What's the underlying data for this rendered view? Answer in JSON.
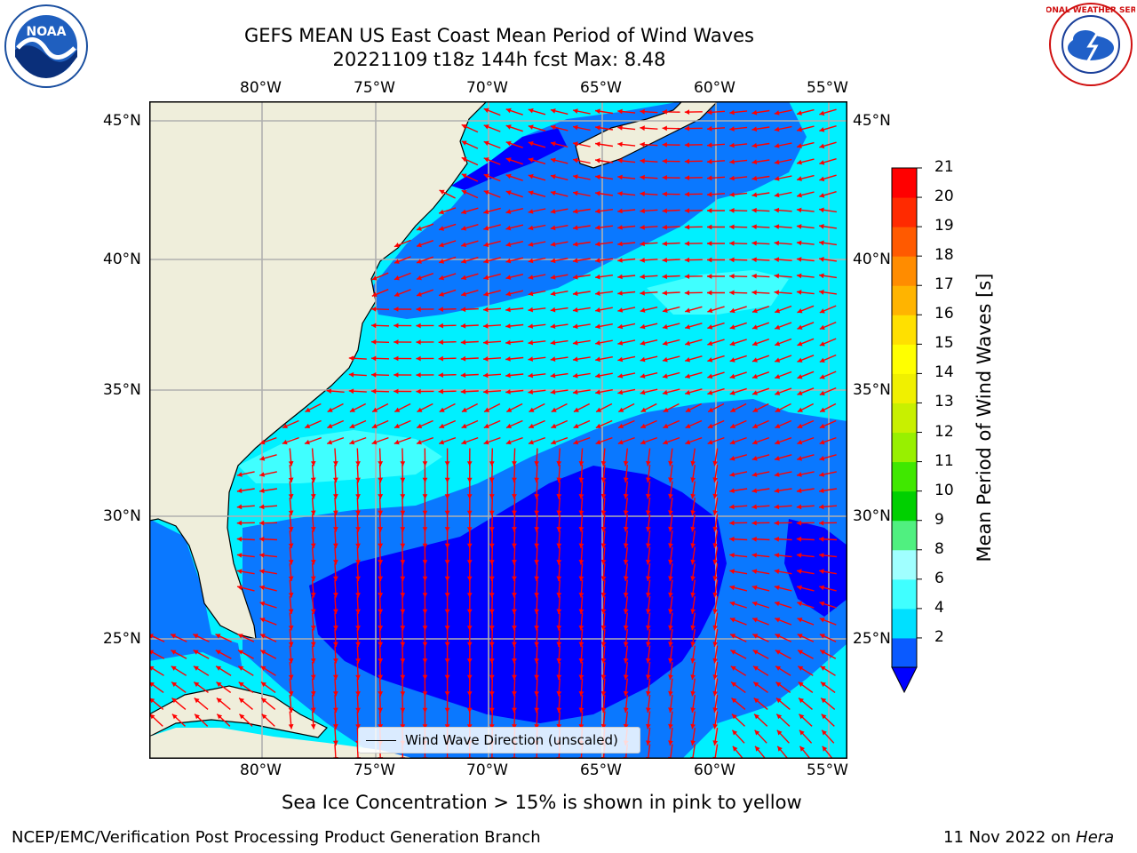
{
  "title": {
    "line1": "GEFS MEAN US East Coast Mean Period of Wind Waves",
    "line2": "20221109 t18z 144h fcst   Max: 8.48"
  },
  "logos": {
    "left": {
      "icon": "noaa-logo-icon",
      "text": "NOAA"
    },
    "right": {
      "icon": "nws-logo-icon",
      "text": "NATIONAL WEATHER SERVICE"
    }
  },
  "axes": {
    "lon_ticks": [
      "80°W",
      "75°W",
      "70°W",
      "65°W",
      "60°W",
      "55°W"
    ],
    "lat_ticks": [
      "45°N",
      "40°N",
      "35°N",
      "30°N",
      "25°N"
    ],
    "lon_range": [
      -85,
      -54.3
    ],
    "lat_range": [
      20.4,
      45.9
    ],
    "grid": true
  },
  "legend": {
    "label": "Wind Wave Direction (unscaled)",
    "placement": "bottom-center"
  },
  "colorbar": {
    "label": "Mean Period of Wind Waves [s]",
    "ticks": [
      "21",
      "20",
      "19",
      "18",
      "17",
      "16",
      "15",
      "14",
      "13",
      "12",
      "11",
      "10",
      "9",
      "8",
      "6",
      "4",
      "2"
    ],
    "levels": [
      2,
      4,
      6,
      8,
      9,
      10,
      11,
      12,
      13,
      14,
      15,
      16,
      17,
      18,
      19,
      20,
      21
    ],
    "colors": [
      "#0A5AFF",
      "#00E0FF",
      "#40FFFF",
      "#A0FFFF",
      "#50F080",
      "#00D000",
      "#40E800",
      "#98F000",
      "#C8F000",
      "#F0F000",
      "#FFFF00",
      "#FFE000",
      "#FFB400",
      "#FF8C00",
      "#FF5A00",
      "#FF2A00",
      "#FF0000"
    ],
    "under_color": "#0000FF"
  },
  "colors": {
    "land": "#EFEEDB",
    "period_2": "#0000FF",
    "period_2_4": "#0A78FF",
    "period_4_6": "#00F0FF",
    "period_6_8": "#40FFFF",
    "arrows": "#FF0000",
    "grid": "#B0B0B0"
  },
  "note": "Sea Ice Concentration > 15% is shown in pink to yellow",
  "footer": {
    "left": "NCEP/EMC/Verification Post Processing Product Generation Branch",
    "right_prefix": "11 Nov 2022 on ",
    "right_host": "Hera"
  }
}
